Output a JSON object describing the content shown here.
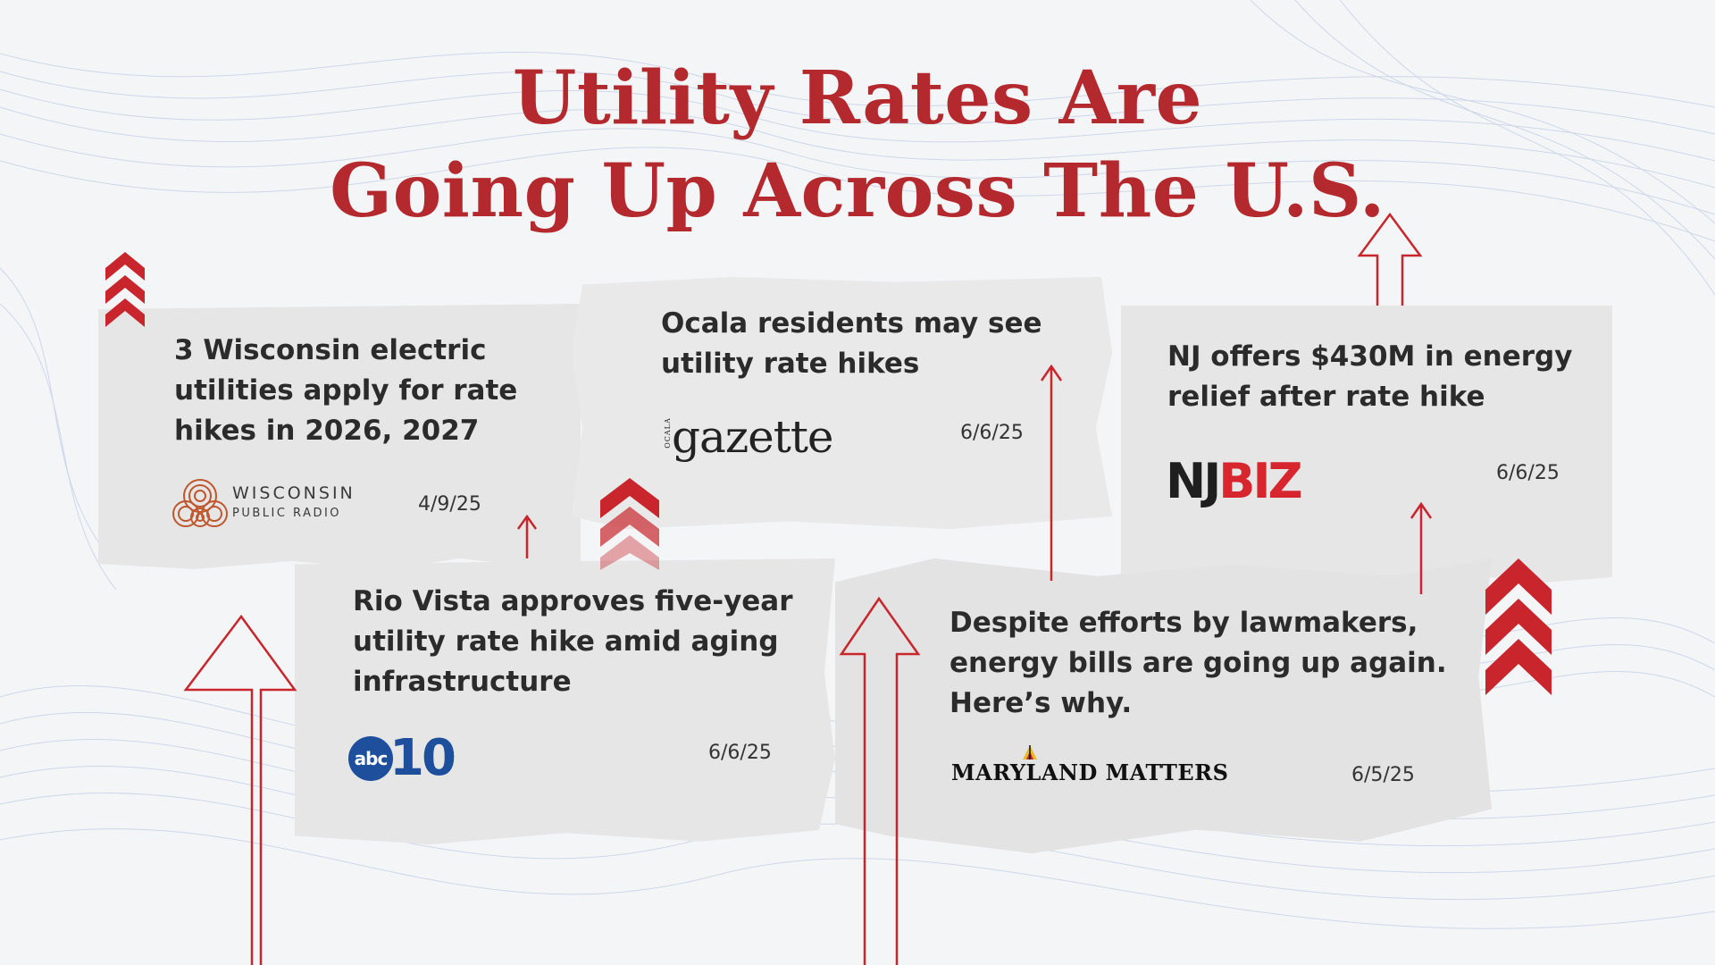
{
  "title": {
    "line1": "Utility Rates Are",
    "line2": "Going Up Across The U.S."
  },
  "colors": {
    "accent_red": "#b3292e",
    "arrow_red": "#c8262c",
    "abc_blue": "#1d4f9c"
  },
  "articles": [
    {
      "headline_lines": [
        "3 Wisconsin electric",
        "utilities apply for rate",
        "hikes in 2026, 2027"
      ],
      "source": "WISCONSIN",
      "source_sub": "PUBLIC RADIO",
      "date": "4/9/25"
    },
    {
      "headline_lines": [
        "Ocala residents may see",
        "utility rate hikes"
      ],
      "source": "gazette",
      "source_prefix": "OCALA",
      "date": "6/6/25"
    },
    {
      "headline_lines": [
        "NJ offers $430M in energy",
        "relief after rate hike"
      ],
      "source_part1": "NJ",
      "source_part2": "BIZ",
      "date": "6/6/25"
    },
    {
      "headline_lines": [
        "Rio Vista approves five-year",
        "utility rate hike amid aging",
        "infrastructure"
      ],
      "source_part1": "abc",
      "source_part2": "10",
      "date": "6/6/25"
    },
    {
      "headline_lines": [
        "Despite efforts by lawmakers,",
        "energy bills are going up again.",
        "Here’s why."
      ],
      "source": "MARYLAND MATTERS",
      "date": "6/5/25"
    }
  ],
  "icons": [
    "chevron-up-stack-icon",
    "outline-up-arrow-icon",
    "thin-up-arrow-icon",
    "maryland-flag-icon",
    "wpr-rings-icon"
  ]
}
